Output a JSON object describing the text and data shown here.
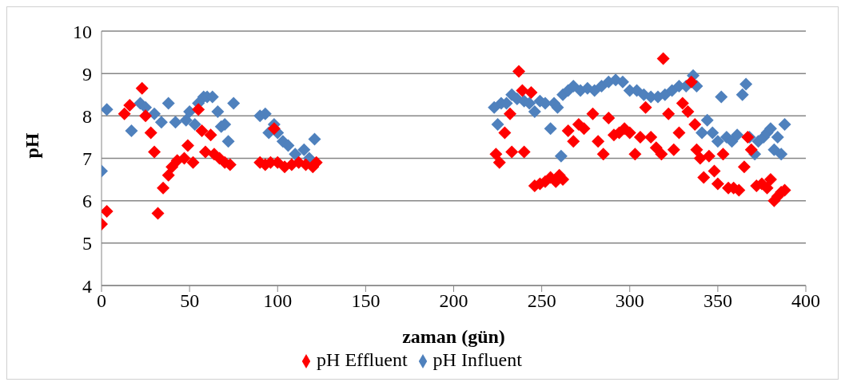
{
  "chart_data": {
    "type": "scatter",
    "xlabel": "zaman (gün)",
    "ylabel": "pH",
    "xlim": [
      0,
      400
    ],
    "xticks": [
      0,
      50,
      100,
      150,
      200,
      250,
      300,
      350,
      400
    ],
    "ylim": [
      4,
      10
    ],
    "yticks": [
      4,
      5,
      6,
      7,
      8,
      9,
      10
    ],
    "grid": "y",
    "legend": "bottom",
    "marker": "diamond",
    "series": [
      {
        "name": "pH Influent",
        "color": "#4f81bd",
        "x": [
          0,
          3,
          17,
          22,
          25,
          30,
          34,
          38,
          42,
          48,
          50,
          53,
          55,
          58,
          60,
          63,
          66,
          68,
          70,
          72,
          75,
          90,
          93,
          95,
          98,
          100,
          103,
          106,
          110,
          115,
          118,
          121,
          223,
          225,
          227,
          230,
          233,
          236,
          240,
          243,
          246,
          249,
          252,
          255,
          257,
          259,
          261,
          262,
          265,
          268,
          272,
          276,
          280,
          284,
          288,
          292,
          296,
          300,
          304,
          308,
          312,
          316,
          320,
          324,
          328,
          332,
          336,
          338,
          341,
          344,
          347,
          350,
          352,
          355,
          358,
          361,
          364,
          366,
          368,
          371,
          373,
          376,
          378,
          380,
          382,
          384,
          386,
          388
        ],
        "values": [
          6.7,
          8.15,
          7.65,
          8.3,
          8.2,
          8.05,
          7.85,
          8.3,
          7.85,
          7.9,
          8.1,
          7.8,
          8.3,
          8.45,
          8.45,
          8.45,
          8.1,
          7.75,
          7.8,
          7.4,
          8.3,
          8.0,
          8.05,
          7.6,
          7.8,
          7.6,
          7.4,
          7.3,
          7.1,
          7.2,
          7.0,
          7.45,
          8.2,
          7.8,
          8.3,
          8.3,
          8.5,
          8.4,
          8.35,
          8.3,
          8.1,
          8.35,
          8.3,
          7.7,
          8.3,
          8.2,
          7.05,
          8.5,
          8.6,
          8.7,
          8.6,
          8.65,
          8.6,
          8.7,
          8.8,
          8.85,
          8.8,
          8.6,
          8.6,
          8.5,
          8.45,
          8.45,
          8.5,
          8.6,
          8.7,
          8.7,
          8.95,
          8.7,
          7.6,
          7.9,
          7.6,
          7.4,
          8.45,
          7.5,
          7.4,
          7.55,
          8.5,
          8.75,
          7.5,
          7.1,
          7.4,
          7.5,
          7.6,
          7.7,
          7.2,
          7.5,
          7.1,
          7.8
        ]
      },
      {
        "name": "pH Effluent",
        "color": "#ff0000",
        "x": [
          0,
          3,
          13,
          16,
          23,
          25,
          28,
          30,
          32,
          35,
          38,
          40,
          43,
          47,
          49,
          52,
          55,
          57,
          59,
          62,
          64,
          67,
          70,
          73,
          90,
          93,
          96,
          98,
          100,
          104,
          108,
          112,
          116,
          120,
          122,
          224,
          226,
          229,
          232,
          233,
          237,
          239,
          240,
          244,
          246,
          249,
          252,
          255,
          258,
          260,
          262,
          265,
          268,
          271,
          274,
          279,
          282,
          285,
          288,
          291,
          294,
          297,
          300,
          303,
          306,
          309,
          312,
          315,
          318,
          319,
          322,
          325,
          328,
          330,
          333,
          335,
          337,
          338,
          340,
          342,
          345,
          348,
          350,
          353,
          356,
          359,
          362,
          365,
          367,
          369,
          372,
          375,
          378,
          380,
          382,
          384,
          386,
          388
        ],
        "values": [
          5.45,
          5.75,
          8.05,
          8.25,
          8.65,
          8.0,
          7.6,
          7.15,
          5.7,
          6.3,
          6.6,
          6.8,
          6.95,
          7.0,
          7.3,
          6.9,
          8.15,
          7.65,
          7.15,
          7.55,
          7.1,
          7.0,
          6.9,
          6.85,
          6.9,
          6.85,
          6.9,
          7.7,
          6.9,
          6.8,
          6.85,
          6.9,
          6.85,
          6.8,
          6.9,
          7.1,
          6.9,
          7.6,
          8.05,
          7.15,
          9.05,
          8.6,
          7.15,
          8.55,
          6.35,
          6.4,
          6.45,
          6.55,
          6.45,
          6.6,
          6.5,
          7.65,
          7.4,
          7.8,
          7.7,
          8.05,
          7.4,
          7.1,
          7.95,
          7.55,
          7.6,
          7.7,
          7.6,
          7.1,
          7.5,
          8.2,
          7.5,
          7.25,
          7.1,
          9.35,
          8.05,
          7.2,
          7.6,
          8.3,
          8.1,
          8.8,
          7.8,
          7.2,
          7.0,
          6.55,
          7.05,
          6.7,
          6.4,
          7.1,
          6.3,
          6.3,
          6.25,
          6.8,
          7.5,
          7.2,
          6.35,
          6.4,
          6.3,
          6.5,
          6.0,
          6.1,
          6.2,
          6.25
        ]
      }
    ]
  }
}
